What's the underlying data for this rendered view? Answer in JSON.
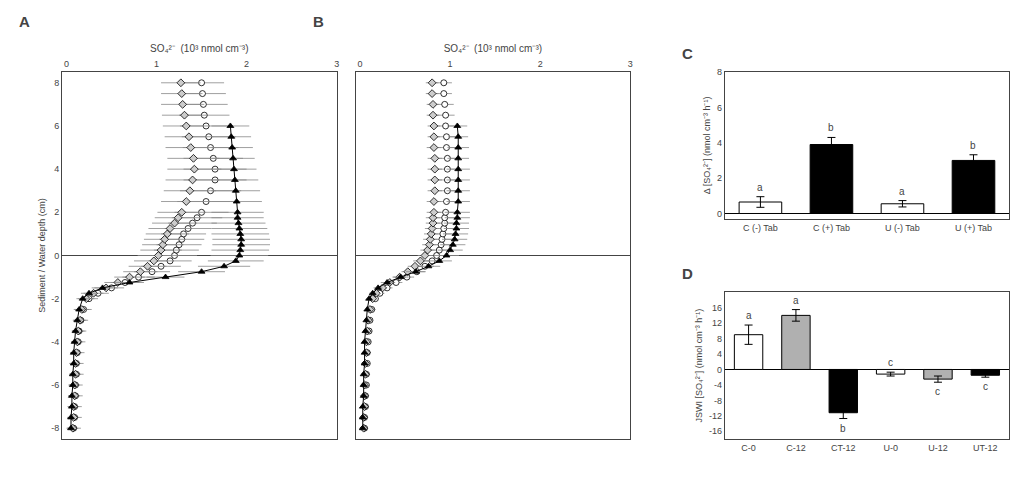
{
  "chart_data": [
    {
      "type": "scatter",
      "title": "A",
      "orientation": "horizontal",
      "xlabel": "SO₄²⁻  (10³ nmol cm⁻³)",
      "ylabel": "Sediment / Water depth (cm)",
      "y": [
        -8,
        -7.5,
        -7,
        -6.5,
        -6,
        -5.5,
        -5,
        -4.5,
        -4,
        -3.5,
        -3,
        -2.5,
        -2,
        -1.75,
        -1.5,
        -1.25,
        -1,
        -0.75,
        -0.5,
        -0.25,
        0,
        0.25,
        0.5,
        0.75,
        1,
        1.25,
        1.5,
        1.75,
        2,
        2.5,
        3,
        3.5,
        4,
        4.5,
        5,
        5.5,
        6,
        6.5,
        7,
        7.5,
        8
      ],
      "series": [
        {
          "marker": "circle",
          "color": "white",
          "values": [
            0.08,
            0.09,
            0.09,
            0.1,
            0.1,
            0.11,
            0.11,
            0.12,
            0.13,
            0.14,
            0.16,
            0.19,
            0.25,
            0.35,
            0.5,
            0.65,
            0.8,
            0.95,
            1.05,
            1.15,
            1.2,
            1.22,
            1.25,
            1.28,
            1.3,
            1.35,
            1.4,
            1.45,
            1.5,
            1.55,
            1.6,
            1.65,
            1.65,
            1.63,
            1.6,
            1.58,
            1.55,
            1.53,
            1.52,
            1.51,
            1.5
          ],
          "errors": [
            0.08,
            0.08,
            0.08,
            0.08,
            0.08,
            0.08,
            0.08,
            0.08,
            0.08,
            0.08,
            0.08,
            0.09,
            0.1,
            0.12,
            0.14,
            0.16,
            0.18,
            0.2,
            0.22,
            0.24,
            0.25,
            0.25,
            0.25,
            0.25,
            0.25,
            0.26,
            0.27,
            0.28,
            0.3,
            0.32,
            0.34,
            0.35,
            0.35,
            0.33,
            0.31,
            0.3,
            0.29,
            0.28,
            0.27,
            0.26,
            0.25
          ]
        },
        {
          "marker": "diamond",
          "color": "#cccccc",
          "values": [
            0.07,
            0.08,
            0.08,
            0.09,
            0.09,
            0.1,
            0.1,
            0.11,
            0.12,
            0.13,
            0.15,
            0.17,
            0.22,
            0.3,
            0.44,
            0.57,
            0.7,
            0.82,
            0.9,
            0.97,
            1.02,
            1.05,
            1.07,
            1.09,
            1.12,
            1.15,
            1.2,
            1.24,
            1.28,
            1.33,
            1.37,
            1.4,
            1.42,
            1.41,
            1.38,
            1.36,
            1.33,
            1.31,
            1.29,
            1.28,
            1.27
          ],
          "errors": [
            0.06,
            0.06,
            0.06,
            0.06,
            0.06,
            0.06,
            0.06,
            0.06,
            0.06,
            0.07,
            0.07,
            0.08,
            0.09,
            0.11,
            0.13,
            0.15,
            0.17,
            0.19,
            0.21,
            0.22,
            0.23,
            0.23,
            0.23,
            0.23,
            0.24,
            0.24,
            0.25,
            0.26,
            0.27,
            0.28,
            0.29,
            0.3,
            0.3,
            0.29,
            0.28,
            0.27,
            0.26,
            0.25,
            0.24,
            0.23,
            0.22
          ]
        },
        {
          "marker": "triangle-up",
          "color": "black",
          "line_style": "solid",
          "values": [
            0.05,
            0.05,
            0.06,
            0.06,
            0.07,
            0.07,
            0.08,
            0.08,
            0.09,
            0.1,
            0.12,
            0.14,
            0.18,
            0.25,
            0.4,
            0.7,
            1.1,
            1.5,
            1.75,
            1.88,
            1.92,
            1.93,
            1.94,
            1.94,
            1.93,
            1.92,
            1.91,
            1.9,
            1.9,
            1.89,
            1.88,
            1.87,
            1.86,
            1.85,
            1.84,
            1.83,
            1.82,
            null,
            null,
            null,
            null
          ],
          "errors": [
            0.04,
            0.04,
            0.04,
            0.04,
            0.04,
            0.04,
            0.04,
            0.04,
            0.04,
            0.04,
            0.05,
            0.06,
            0.07,
            0.09,
            0.12,
            0.16,
            0.21,
            0.26,
            0.29,
            0.31,
            0.32,
            0.32,
            0.32,
            0.32,
            0.32,
            0.31,
            0.3,
            0.29,
            0.29,
            0.28,
            0.27,
            0.26,
            0.25,
            0.24,
            0.23,
            0.22,
            0.21,
            null,
            null,
            null,
            null
          ]
        }
      ],
      "xlim": [
        -0.05,
        3.0
      ],
      "xticks": [
        0,
        1,
        2,
        3
      ],
      "ylim": [
        -8.5,
        8.5
      ],
      "yticks": [
        -8,
        -6,
        -4,
        -2,
        0,
        2,
        4,
        6,
        8
      ],
      "grid": false
    },
    {
      "type": "scatter",
      "title": "B",
      "orientation": "horizontal",
      "xlabel": "SO₄²⁻  (10³ nmol cm⁻³)",
      "y": [
        -8,
        -7.5,
        -7,
        -6.5,
        -6,
        -5.5,
        -5,
        -4.5,
        -4,
        -3.5,
        -3,
        -2.5,
        -2,
        -1.75,
        -1.5,
        -1.25,
        -1,
        -0.75,
        -0.5,
        -0.25,
        0,
        0.25,
        0.5,
        0.75,
        1,
        1.25,
        1.5,
        1.75,
        2,
        2.5,
        3,
        3.5,
        4,
        4.5,
        5,
        5.5,
        6,
        6.5,
        7,
        7.5,
        8
      ],
      "series": [
        {
          "marker": "circle",
          "color": "white",
          "values": [
            0.05,
            0.05,
            0.06,
            0.06,
            0.07,
            0.07,
            0.08,
            0.08,
            0.09,
            0.1,
            0.11,
            0.13,
            0.17,
            0.22,
            0.3,
            0.4,
            0.52,
            0.63,
            0.72,
            0.8,
            0.85,
            0.88,
            0.9,
            0.91,
            0.92,
            0.93,
            0.94,
            0.94,
            0.95,
            0.96,
            0.97,
            0.97,
            0.97,
            0.97,
            0.96,
            0.96,
            0.95,
            0.95,
            0.94,
            0.93,
            0.93
          ],
          "errors": [
            0.03,
            0.03,
            0.03,
            0.03,
            0.03,
            0.03,
            0.03,
            0.03,
            0.03,
            0.03,
            0.03,
            0.04,
            0.04,
            0.05,
            0.06,
            0.07,
            0.08,
            0.09,
            0.1,
            0.1,
            0.11,
            0.11,
            0.11,
            0.11,
            0.11,
            0.11,
            0.11,
            0.11,
            0.11,
            0.11,
            0.11,
            0.11,
            0.11,
            0.11,
            0.11,
            0.1,
            0.1,
            0.1,
            0.1,
            0.09,
            0.09
          ]
        },
        {
          "marker": "diamond",
          "color": "#cccccc",
          "values": [
            0.04,
            0.04,
            0.05,
            0.05,
            0.05,
            0.06,
            0.06,
            0.07,
            0.07,
            0.08,
            0.09,
            0.11,
            0.14,
            0.18,
            0.25,
            0.33,
            0.44,
            0.53,
            0.61,
            0.67,
            0.72,
            0.75,
            0.77,
            0.78,
            0.79,
            0.8,
            0.81,
            0.81,
            0.82,
            0.82,
            0.83,
            0.83,
            0.83,
            0.83,
            0.82,
            0.82,
            0.82,
            0.81,
            0.81,
            0.8,
            0.8
          ],
          "errors": [
            0.02,
            0.02,
            0.02,
            0.02,
            0.02,
            0.02,
            0.02,
            0.02,
            0.02,
            0.02,
            0.02,
            0.03,
            0.03,
            0.04,
            0.05,
            0.06,
            0.07,
            0.07,
            0.08,
            0.08,
            0.08,
            0.08,
            0.08,
            0.08,
            0.08,
            0.08,
            0.08,
            0.08,
            0.08,
            0.08,
            0.08,
            0.08,
            0.08,
            0.08,
            0.08,
            0.07,
            0.07,
            0.07,
            0.07,
            0.07,
            0.07
          ]
        },
        {
          "marker": "triangle-up",
          "color": "black",
          "line_style": "solid",
          "values": [
            0.03,
            0.03,
            0.03,
            0.04,
            0.04,
            0.04,
            0.05,
            0.05,
            0.05,
            0.06,
            0.07,
            0.08,
            0.1,
            0.14,
            0.2,
            0.3,
            0.45,
            0.62,
            0.76,
            0.88,
            0.96,
            1.0,
            1.03,
            1.05,
            1.06,
            1.07,
            1.07,
            1.08,
            1.08,
            1.09,
            1.09,
            1.09,
            1.09,
            1.09,
            1.09,
            1.09,
            1.08,
            null,
            null,
            null,
            null
          ],
          "errors": [
            0.01,
            0.01,
            0.01,
            0.01,
            0.01,
            0.01,
            0.01,
            0.01,
            0.01,
            0.01,
            0.02,
            0.02,
            0.03,
            0.04,
            0.05,
            0.07,
            0.09,
            0.11,
            0.13,
            0.14,
            0.14,
            0.14,
            0.14,
            0.14,
            0.14,
            0.14,
            0.14,
            0.14,
            0.14,
            0.13,
            0.13,
            0.13,
            0.13,
            0.12,
            0.12,
            0.11,
            0.11,
            null,
            null,
            null,
            null
          ]
        }
      ],
      "xlim": [
        -0.05,
        3.0
      ],
      "xticks": [
        0,
        1,
        2,
        3
      ],
      "ylim": [
        -8.5,
        8.5
      ],
      "yticks": [
        -8,
        -6,
        -4,
        -2,
        0,
        2,
        4,
        6,
        8
      ],
      "tick_labels": "x",
      "grid": false
    },
    {
      "type": "bar",
      "title": "C",
      "ylabel": "Δ [SO₄²⁻] (nmol cm⁻³ h⁻¹)",
      "categories": [
        "C (-) Tab",
        "C (+) Tab",
        "U (-) Tab",
        "U (+) Tab"
      ],
      "values": [
        0.65,
        3.9,
        0.55,
        3.0
      ],
      "errors": [
        0.3,
        0.4,
        0.18,
        0.32
      ],
      "colors": [
        "white",
        "black",
        "white",
        "black"
      ],
      "annotations": [
        {
          "text": "a",
          "side": "above"
        },
        {
          "text": "b",
          "side": "above"
        },
        {
          "text": "a",
          "side": "above"
        },
        {
          "text": "b",
          "side": "above"
        }
      ],
      "ylim": [
        -0.3,
        8.0
      ],
      "yticks": [
        0,
        2,
        4,
        6,
        8
      ],
      "grid": false
    },
    {
      "type": "bar",
      "title": "D",
      "ylabel": "JSWI [SO₄²⁻] (nmol cm⁻³ h⁻¹)",
      "categories": [
        "C-0",
        "C-12",
        "CT-12",
        "U-0",
        "U-12",
        "UT-12"
      ],
      "values": [
        9.0,
        14.0,
        -11.2,
        -1.2,
        -2.5,
        -1.5
      ],
      "errors": [
        2.5,
        1.5,
        1.5,
        0.5,
        0.8,
        0.5
      ],
      "colors": [
        "white",
        "#b0b0b0",
        "black",
        "white",
        "#b0b0b0",
        "black"
      ],
      "annotations": [
        {
          "text": "a",
          "side": "above"
        },
        {
          "text": "a",
          "side": "above"
        },
        {
          "text": "b",
          "side": "below"
        },
        {
          "text": "c",
          "side": "above"
        },
        {
          "text": "c",
          "side": "below"
        },
        {
          "text": "c",
          "side": "below"
        }
      ],
      "ylim": [
        -18,
        20
      ],
      "yticks": [
        -16,
        -12,
        -8,
        -4,
        0,
        4,
        8,
        12,
        16
      ],
      "grid": false
    }
  ]
}
